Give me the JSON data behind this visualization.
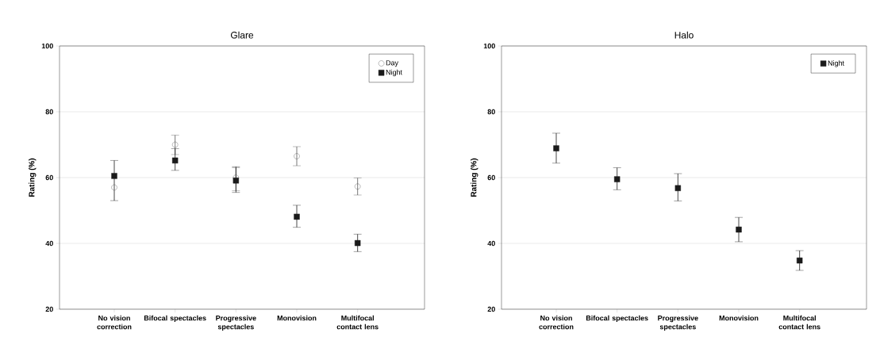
{
  "chart_data": [
    {
      "type": "scatter",
      "title": "Glare",
      "ylabel": "Rating (%)",
      "categories": [
        "No vision correction",
        "Bifocal spectacles",
        "Progressive spectacles",
        "Monovision",
        "Multifocal contact lens"
      ],
      "series": [
        {
          "name": "Day",
          "color": "#555555",
          "marker": "circle",
          "values": [
            57,
            70,
            60,
            66.5,
            57.3
          ],
          "errors": [
            null,
            [
              67,
              72.9
            ],
            [
              56,
              63
            ],
            [
              63.6,
              69.4
            ],
            [
              54.7,
              59.9
            ]
          ]
        },
        {
          "name": "Night",
          "color": "#1a1a1a",
          "marker": "square",
          "values": [
            60.5,
            65.2,
            59.1,
            48.1,
            40.1
          ],
          "errors": [
            [
              53,
              65.2
            ],
            [
              62.2,
              68.8
            ],
            [
              55.5,
              63.3
            ],
            [
              44.9,
              51.6
            ],
            [
              37.5,
              42.8
            ]
          ]
        }
      ],
      "ylim": [
        20,
        100
      ],
      "yticks": [
        20,
        40,
        60,
        80,
        100
      ],
      "grid": "y",
      "legend": "top right"
    },
    {
      "type": "scatter",
      "title": "Halo",
      "ylabel": "Rating (%)",
      "categories": [
        "No vision correction",
        "Bifocal spectacles",
        "Progressive spectacles",
        "Monovision",
        "Multifocal contact lens"
      ],
      "series": [
        {
          "name": "Night",
          "color": "#1a1a1a",
          "marker": "square",
          "values": [
            68.9,
            59.5,
            56.8,
            44.2,
            34.8
          ],
          "errors": [
            [
              64.4,
              73.5
            ],
            [
              56.3,
              63.0
            ],
            [
              52.9,
              61.2
            ],
            [
              40.5,
              47.9
            ],
            [
              31.8,
              37.8
            ]
          ]
        }
      ],
      "ylim": [
        20,
        100
      ],
      "yticks": [
        20,
        40,
        60,
        80,
        100
      ],
      "grid": "y",
      "legend": "top right"
    }
  ]
}
